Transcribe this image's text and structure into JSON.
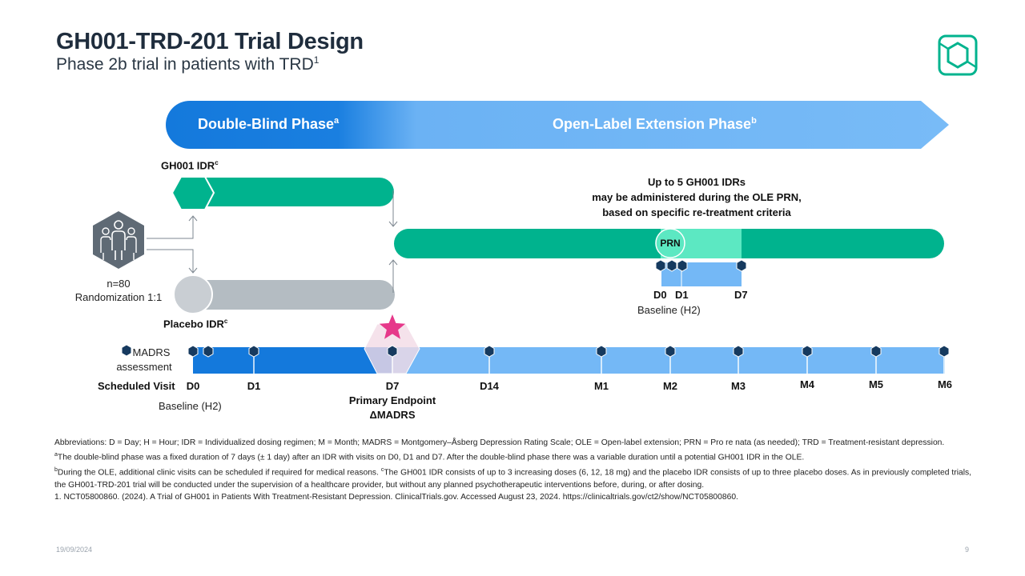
{
  "header": {
    "title": "GH001-TRD-201 Trial Design",
    "subtitle": "Phase 2b trial in patients with TRD",
    "subtitle_sup": "1"
  },
  "phases": {
    "double_blind": "Double-Blind Phase",
    "double_blind_sup": "a",
    "open_label": "Open-Label Extension Phase",
    "open_label_sup": "b"
  },
  "arms": {
    "gh001": "GH001 IDR",
    "gh001_sup": "c",
    "placebo": "Placebo IDR",
    "placebo_sup": "c",
    "randomization_n": "n=80",
    "randomization": "Randomization 1:1"
  },
  "ole": {
    "note_line1": "Up to 5 GH001 IDRs",
    "note_line2": "may be administered during the OLE PRN,",
    "note_line3": "based on specific re-treatment criteria",
    "prn": "PRN",
    "d0": "D0",
    "d1": "D1",
    "d7": "D7",
    "baseline": "Baseline (H2)"
  },
  "timeline": {
    "madrs_line1": "MADRS",
    "madrs_line2": "assessment",
    "scheduled_visit": "Scheduled Visit",
    "visits": [
      "D0",
      "D1",
      "D7",
      "D14",
      "M1",
      "M2",
      "M3",
      "M4",
      "M5",
      "M6"
    ],
    "baseline": "Baseline (H2)",
    "primary_endpoint_line1": "Primary Endpoint",
    "primary_endpoint_line2": "ΔMADRS"
  },
  "footnotes": {
    "abbreviations": "Abbreviations: D = Day; H = Hour; IDR = Individualized dosing regimen; M = Month; MADRS = Montgomery–Åsberg Depression Rating Scale; OLE = Open-label extension; PRN = Pro re nata (as needed); TRD = Treatment-resistant depression.",
    "a_mark": "a",
    "a_text": "The double-blind phase was a fixed duration of 7 days (± 1 day) after an IDR with visits on D0, D1 and D7. After the double-blind phase there was a variable duration until a potential GH001 IDR in the OLE.",
    "b_mark": "b",
    "b_text": "During the OLE, additional clinic visits can be scheduled if required for medical reasons. ",
    "c_mark": "c",
    "c_text": "The GH001 IDR consists of up to 3 increasing doses (6, 12, 18 mg) and the placebo IDR consists of up to three placebo doses. As in previously completed trials, the GH001-TRD-201 trial will be conducted under the supervision of a healthcare provider, but without any planned psychotherapeutic interventions before, during, or after dosing.",
    "ref1": "1. NCT05800860. (2024). A Trial of GH001 in Patients With Treatment-Resistant Depression. ClinicalTrials.gov. Accessed August 23, 2024. https://clinicaltrials.gov/ct2/show/NCT05800860."
  },
  "footer": {
    "date": "19/09/2024",
    "page": "9"
  },
  "colors": {
    "dark_blue": "#1479dc",
    "light_blue": "#74b8f6",
    "green": "#00b38e",
    "light_green": "#5ce8c2",
    "gray": "#b4bcc2",
    "navy_marker": "#163a5f",
    "star": "#e6388a"
  }
}
